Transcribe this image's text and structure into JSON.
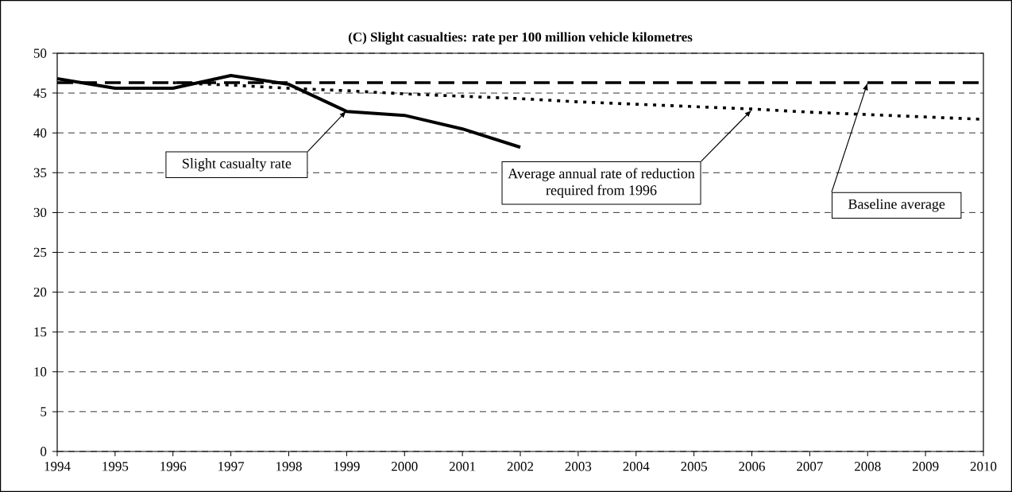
{
  "chart_data": {
    "type": "line",
    "title": "(C) Slight casualties: rate per 100 million vehicle kilometres",
    "xlim": [
      1994,
      2010
    ],
    "xticks": [
      1994,
      1995,
      1996,
      1997,
      1998,
      1999,
      2000,
      2001,
      2002,
      2003,
      2004,
      2005,
      2006,
      2007,
      2008,
      2009,
      2010
    ],
    "ylim": [
      0,
      50
    ],
    "yticks": [
      0,
      5,
      10,
      15,
      20,
      25,
      30,
      35,
      40,
      45,
      50
    ],
    "grid": "y",
    "marker": "none",
    "series": [
      {
        "color": "#000000",
        "line_style": "solid",
        "x": [
          1994,
          1995,
          1996,
          1997,
          1998,
          1999,
          2000,
          2001,
          2002
        ],
        "values": [
          46.8,
          45.6,
          45.6,
          47.2,
          46.1,
          42.7,
          42.2,
          40.5,
          38.2
        ]
      },
      {
        "color": "#000000",
        "line_style": "dotted",
        "x": [
          1996,
          1997,
          1998,
          1999,
          2000,
          2001,
          2002,
          2003,
          2004,
          2005,
          2006,
          2007,
          2008,
          2009,
          2010
        ],
        "values": [
          46.3,
          46.0,
          45.6,
          45.3,
          44.9,
          44.6,
          44.3,
          43.9,
          43.6,
          43.3,
          43.0,
          42.6,
          42.3,
          42.0,
          41.7
        ]
      }
    ],
    "ref_lines": [
      {
        "axis": "y",
        "value": 46.3,
        "color": "#000000",
        "line_style": "dashed"
      }
    ],
    "annotations": [
      {
        "text": "Slight casualty rate",
        "x": 1999,
        "y": 42.8
      },
      {
        "text": "Average annual rate of reduction required from 1996",
        "x": 2006,
        "y": 42.9
      },
      {
        "text": "Baseline average",
        "x": 2008,
        "y": 46.3
      }
    ]
  }
}
